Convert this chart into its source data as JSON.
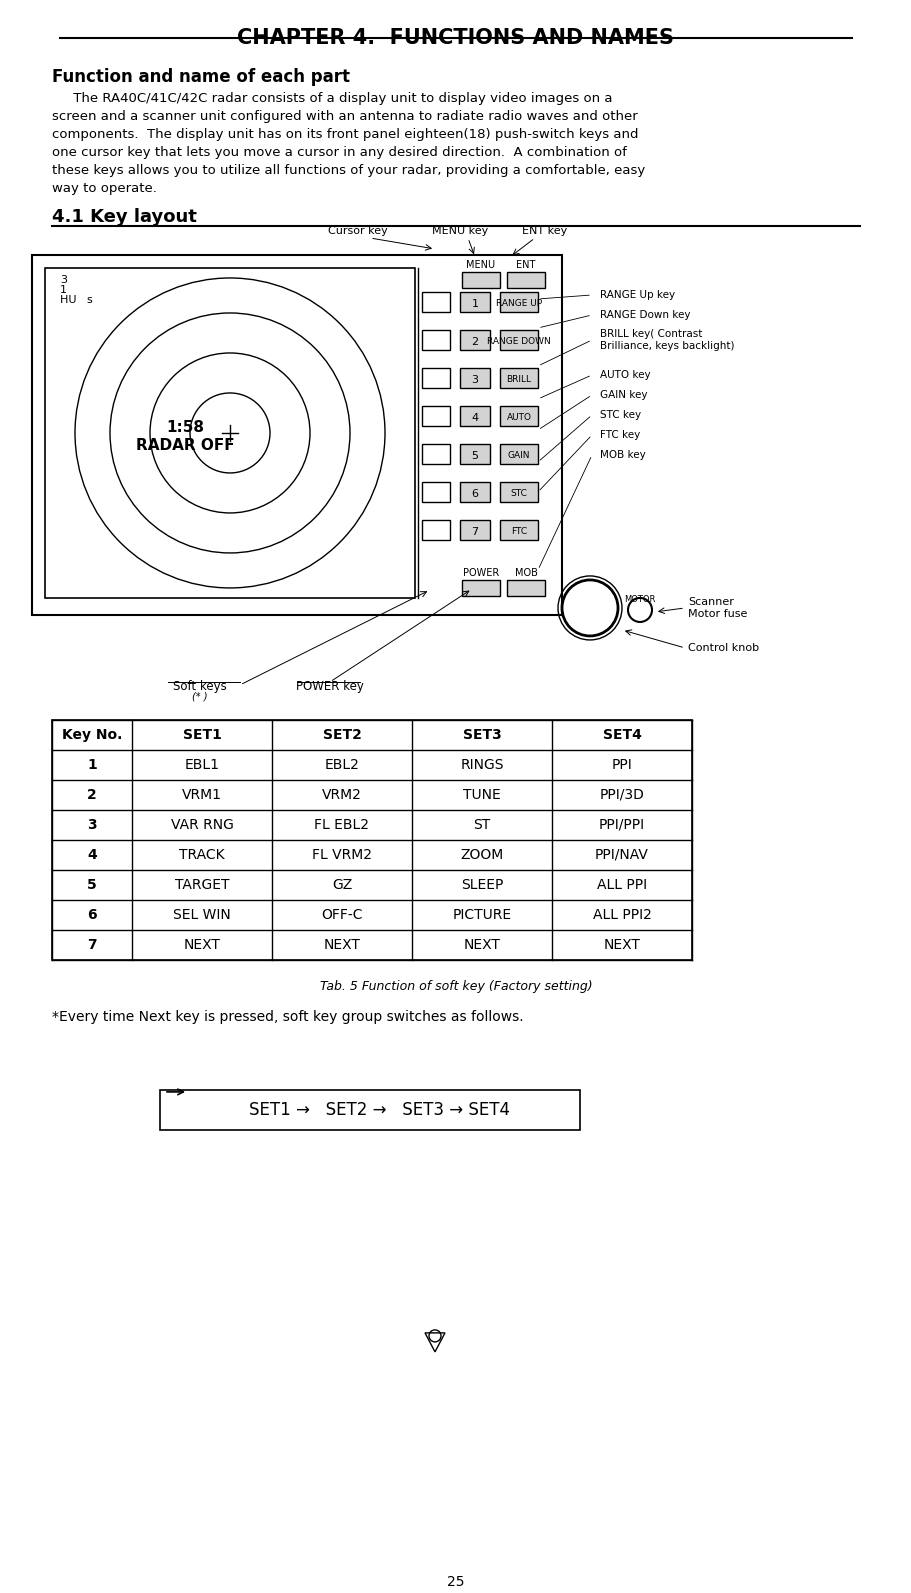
{
  "title": "CHAPTER 4.  FUNCTIONS AND NAMES",
  "section_title": "Function and name of each part",
  "body_text": "     The RA40C/41C/42C radar consists of a display unit to display video images on a screen and a scanner unit configured with an antenna to radiate radio waves and other components.  The display unit has on its front panel eighteen(18) push-switch keys and one cursor key that lets you move a cursor in any desired direction.  A combination of these keys allows you to utilize all functions of your radar, providing a comfortable, easy way to operate.",
  "key_layout_title": "4.1 Key layout",
  "table_headers": [
    "Key No.",
    "SET1",
    "SET2",
    "SET3",
    "SET4"
  ],
  "table_rows": [
    [
      "1",
      "EBL1",
      "EBL2",
      "RINGS",
      "PPI"
    ],
    [
      "2",
      "VRM1",
      "VRM2",
      "TUNE",
      "PPI/3D"
    ],
    [
      "3",
      "VAR RNG",
      "FL EBL2",
      "ST",
      "PPI/PPI"
    ],
    [
      "4",
      "TRACK",
      "FL VRM2",
      "ZOOM",
      "PPI/NAV"
    ],
    [
      "5",
      "TARGET",
      "GZ",
      "SLEEP",
      "ALL PPI"
    ],
    [
      "6",
      "SEL WIN",
      "OFF-C",
      "PICTURE",
      "ALL PPI2"
    ],
    [
      "7",
      "NEXT",
      "NEXT",
      "NEXT",
      "NEXT"
    ]
  ],
  "table_caption": "Tab. 5 Function of soft key (Factory setting)",
  "note_text": "*Every time Next key is pressed, soft key group switches as follows.",
  "flow_text": "SET1 →   SET2 →   SET3 → SET4",
  "page_number": "25",
  "bg_color": "#ffffff",
  "text_color": "#000000"
}
